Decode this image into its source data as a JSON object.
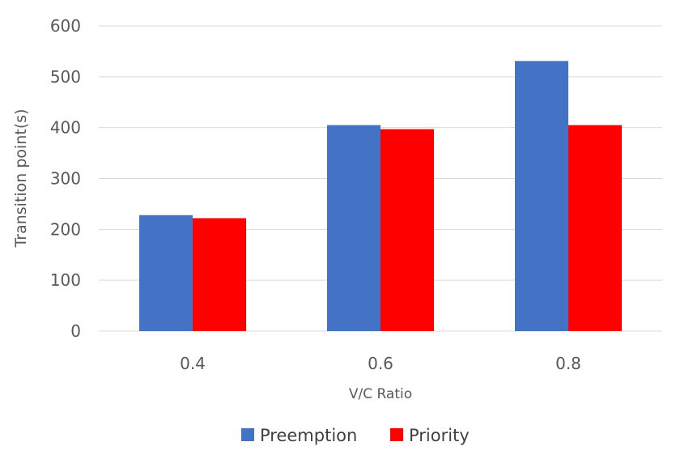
{
  "chart_data": {
    "type": "bar",
    "title": "",
    "xlabel": "V/C Ratio",
    "ylabel": "Transition point(s)",
    "categories": [
      "0.4",
      "0.6",
      "0.8"
    ],
    "ylim": [
      0,
      600
    ],
    "yticks": [
      0,
      100,
      200,
      300,
      400,
      500,
      600
    ],
    "grid": true,
    "legend_position": "bottom",
    "series": [
      {
        "name": "Preemption",
        "color": "#4472C4",
        "values": [
          228,
          405,
          531
        ]
      },
      {
        "name": "Priority",
        "color": "#FF0000",
        "values": [
          222,
          397,
          405
        ]
      }
    ]
  }
}
